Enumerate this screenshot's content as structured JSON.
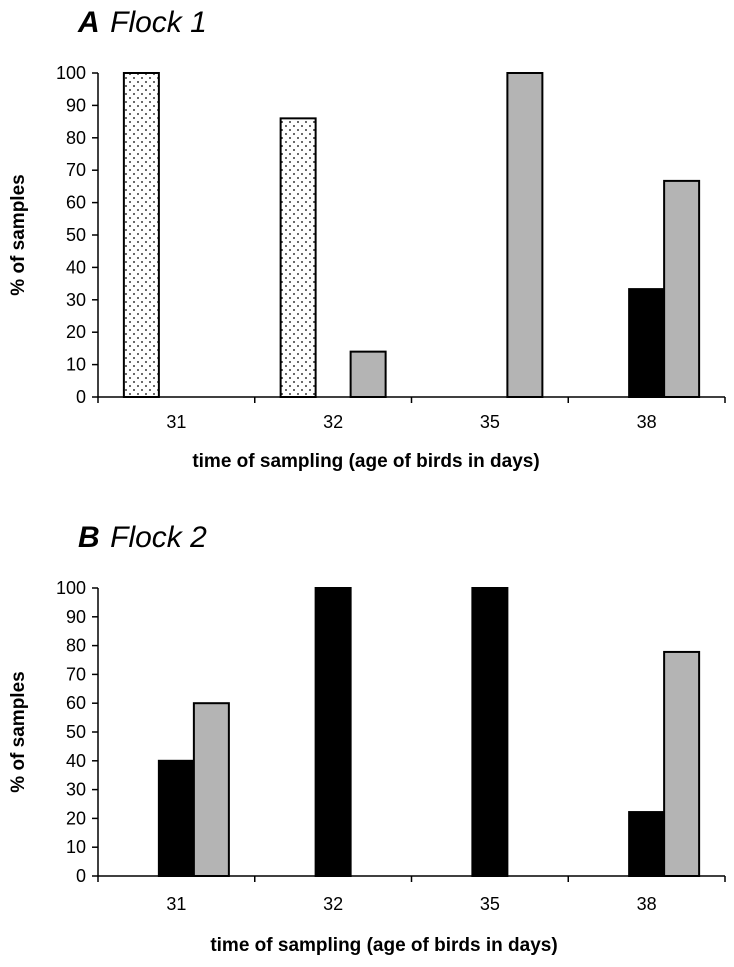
{
  "chart_data": [
    {
      "type": "bar",
      "panel_letter": "A",
      "panel_name": "Flock 1",
      "xlabel": "time of sampling (age of birds in days)",
      "ylabel": "% of samples",
      "ylim": [
        0,
        100
      ],
      "yticks": [
        "0",
        "10",
        "20",
        "30",
        "40",
        "50",
        "60",
        "70",
        "80",
        "90",
        "100"
      ],
      "categories": [
        "31",
        "32",
        "35",
        "38"
      ],
      "series": [
        {
          "fill": "dotted",
          "color": "#ffffff",
          "values": [
            100,
            86,
            0,
            0
          ]
        },
        {
          "fill": "solid",
          "color": "#000000",
          "values": [
            0,
            0,
            0,
            33.3
          ]
        },
        {
          "fill": "solid",
          "color": "#b4b4b4",
          "values": [
            0,
            14,
            100,
            66.7
          ]
        }
      ],
      "grid": false,
      "legend": "none"
    },
    {
      "type": "bar",
      "panel_letter": "B",
      "panel_name": "Flock 2",
      "xlabel": "time of sampling (age of birds in days)",
      "ylabel": "% of  samples",
      "ylim": [
        0,
        100
      ],
      "yticks": [
        "0",
        "10",
        "20",
        "30",
        "40",
        "50",
        "60",
        "70",
        "80",
        "90",
        "100"
      ],
      "categories": [
        "31",
        "32",
        "35",
        "38"
      ],
      "series": [
        {
          "fill": "dotted",
          "color": "#ffffff",
          "values": [
            0,
            0,
            0,
            0
          ]
        },
        {
          "fill": "solid",
          "color": "#000000",
          "values": [
            40,
            100,
            100,
            22.2
          ]
        },
        {
          "fill": "solid",
          "color": "#b4b4b4",
          "values": [
            60,
            0,
            0,
            77.8
          ]
        }
      ],
      "grid": false,
      "legend": "none"
    }
  ]
}
